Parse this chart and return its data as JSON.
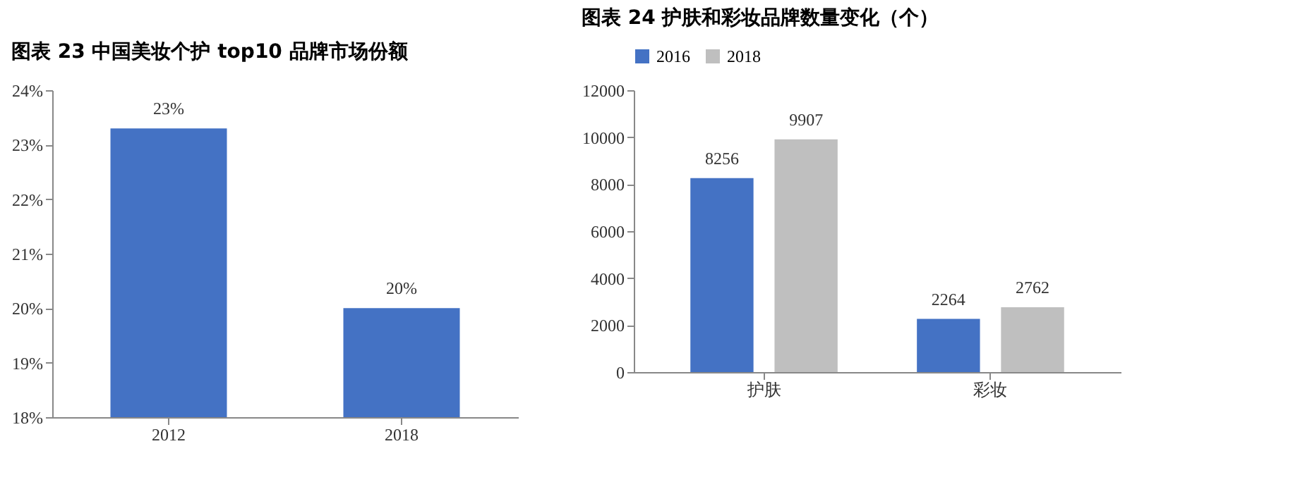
{
  "chart_data": [
    {
      "type": "bar",
      "title": "图表 23 中国美妆个护 top10 品牌市场份额",
      "categories": [
        "2012",
        "2018"
      ],
      "values": [
        23.3,
        20.0
      ],
      "color": "#4472c4",
      "value_labels": [
        "23%",
        "20%"
      ],
      "ylim": [
        18,
        24
      ],
      "yticks": [
        {
          "value": 18,
          "label": "18%"
        },
        {
          "value": 19,
          "label": "19%"
        },
        {
          "value": 20,
          "label": "20%"
        },
        {
          "value": 21,
          "label": "21%"
        },
        {
          "value": 22,
          "label": "22%"
        },
        {
          "value": 23,
          "label": "23%"
        },
        {
          "value": 24,
          "label": "24%"
        }
      ],
      "grid": false
    },
    {
      "type": "bar",
      "title": "图表 24 护肤和彩妆品牌数量变化（个）",
      "categories": [
        "护肤",
        "彩妆"
      ],
      "series": [
        {
          "name": "2016",
          "color": "#4472c4",
          "values": [
            8256,
            2264
          ]
        },
        {
          "name": "2018",
          "color": "#bfbfbf",
          "values": [
            9907,
            2762
          ]
        }
      ],
      "ylim": [
        0,
        12000
      ],
      "yticks": [
        0,
        2000,
        4000,
        6000,
        8000,
        10000,
        12000
      ],
      "data_labels": true,
      "grid": false,
      "legend": "top"
    }
  ]
}
